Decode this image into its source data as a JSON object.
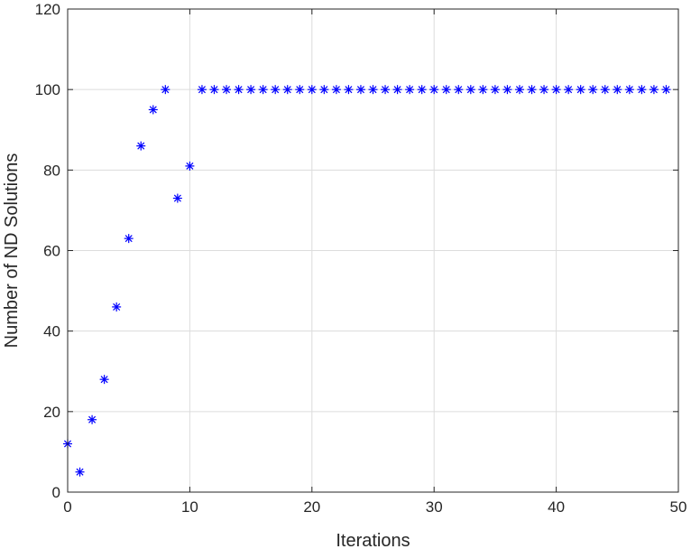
{
  "chart_data": {
    "type": "scatter",
    "title": "",
    "xlabel": "Iterations",
    "ylabel": "Number of ND Solutions",
    "xlim": [
      0,
      50
    ],
    "ylim": [
      0,
      120
    ],
    "xticks": [
      0,
      10,
      20,
      30,
      40,
      50
    ],
    "yticks": [
      0,
      20,
      40,
      60,
      80,
      100,
      120
    ],
    "grid": true,
    "marker": "asterisk",
    "color": "#0000ff",
    "series": [
      {
        "x": [
          0,
          1,
          2,
          3,
          4,
          5,
          6,
          7,
          8,
          9,
          10,
          11,
          12,
          13,
          14,
          15,
          16,
          17,
          18,
          19,
          20,
          21,
          22,
          23,
          24,
          25,
          26,
          27,
          28,
          29,
          30,
          31,
          32,
          33,
          34,
          35,
          36,
          37,
          38,
          39,
          40,
          41,
          42,
          43,
          44,
          45,
          46,
          47,
          48,
          49
        ],
        "y": [
          12,
          5,
          18,
          28,
          46,
          63,
          86,
          95,
          100,
          73,
          81,
          100,
          100,
          100,
          100,
          100,
          100,
          100,
          100,
          100,
          100,
          100,
          100,
          100,
          100,
          100,
          100,
          100,
          100,
          100,
          100,
          100,
          100,
          100,
          100,
          100,
          100,
          100,
          100,
          100,
          100,
          100,
          100,
          100,
          100,
          100,
          100,
          100,
          100,
          100
        ]
      }
    ]
  }
}
